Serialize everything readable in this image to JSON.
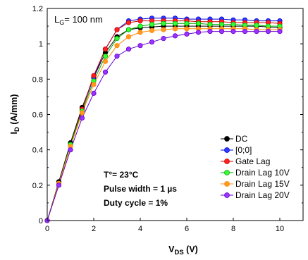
{
  "chart_data": {
    "type": "line",
    "title": "",
    "xlabel": "V",
    "xlabel_sub": "DS",
    "xlabel_unit": " (V)",
    "ylabel": "I",
    "ylabel_sub": "D",
    "ylabel_unit": " (A/mm)",
    "xlim": [
      0,
      11
    ],
    "ylim": [
      0,
      1.2
    ],
    "xticks": [
      0,
      2,
      4,
      6,
      8,
      10
    ],
    "yticks": [
      0,
      0.2,
      0.4,
      0.6,
      0.8,
      1,
      1.2
    ],
    "grid": false,
    "legend_position": "bottom-right",
    "x": [
      0,
      0.5,
      1,
      1.5,
      2,
      2.5,
      3,
      3.5,
      4,
      4.5,
      5,
      5.5,
      6,
      6.5,
      7,
      7.5,
      8,
      8.5,
      9,
      9.5,
      10
    ],
    "series": [
      {
        "name": "DC",
        "color": "#000000",
        "fill": "#000000",
        "values": [
          0,
          0.22,
          0.44,
          0.64,
          0.81,
          0.95,
          1.04,
          1.08,
          1.09,
          1.095,
          1.1,
          1.1,
          1.1,
          1.1,
          1.1,
          1.1,
          1.1,
          1.1,
          1.1,
          1.095,
          1.09
        ]
      },
      {
        "name": "[0;0]",
        "color": "#0000dd",
        "fill": "#2a3cff",
        "values": [
          0,
          0.21,
          0.43,
          0.63,
          0.81,
          0.97,
          1.08,
          1.13,
          1.14,
          1.145,
          1.145,
          1.145,
          1.14,
          1.14,
          1.14,
          1.14,
          1.135,
          1.135,
          1.13,
          1.13,
          1.13
        ]
      },
      {
        "name": "Gate Lag",
        "color": "#cc0000",
        "fill": "#ff2020",
        "values": [
          0,
          0.21,
          0.43,
          0.63,
          0.82,
          0.97,
          1.08,
          1.12,
          1.13,
          1.13,
          1.13,
          1.13,
          1.13,
          1.125,
          1.125,
          1.125,
          1.12,
          1.12,
          1.12,
          1.12,
          1.115
        ]
      },
      {
        "name": "Drain Lag 10V",
        "color": "#00aa00",
        "fill": "#33ff33",
        "values": [
          0,
          0.21,
          0.43,
          0.62,
          0.79,
          0.93,
          1.03,
          1.08,
          1.1,
          1.11,
          1.115,
          1.115,
          1.115,
          1.115,
          1.11,
          1.11,
          1.11,
          1.105,
          1.105,
          1.1,
          1.1
        ]
      },
      {
        "name": "Drain Lag 15V",
        "color": "#ff8800",
        "fill": "#ff9922",
        "values": [
          0,
          0.21,
          0.42,
          0.61,
          0.77,
          0.9,
          0.99,
          1.04,
          1.065,
          1.075,
          1.08,
          1.085,
          1.085,
          1.085,
          1.085,
          1.085,
          1.085,
          1.085,
          1.08,
          1.08,
          1.08
        ]
      },
      {
        "name": "Drain Lag 20V",
        "color": "#6600cc",
        "fill": "#9933ff",
        "values": [
          0,
          0.2,
          0.4,
          0.58,
          0.72,
          0.84,
          0.93,
          0.97,
          0.99,
          1.01,
          1.03,
          1.045,
          1.055,
          1.065,
          1.07,
          1.07,
          1.07,
          1.07,
          1.07,
          1.07,
          1.07
        ]
      }
    ],
    "annotations": {
      "gate_length": "= 100 nm",
      "gate_length_symbol": "L",
      "gate_length_sub": "G",
      "temperature": "T°= 23°C",
      "pulse_width": "Pulse width = 1 µs",
      "duty_cycle": "Duty cycle = 1%"
    }
  }
}
